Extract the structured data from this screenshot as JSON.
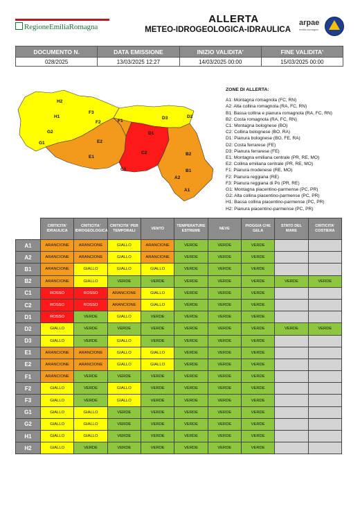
{
  "header": {
    "logo_text": "RegioneEmiliaRomagna",
    "title_main": "ALLERTA",
    "title_sub": "METEO-IDROGEOLOGICA-IDRAULICA",
    "arpae_label": "arpae",
    "arpae_sub": "emilia-romagna"
  },
  "info": {
    "headers": [
      "DOCUMENTO N.",
      "DATA EMISSIONE",
      "INIZIO VALIDITA'",
      "FINE VALIDITA'"
    ],
    "values": [
      "028/2025",
      "13/03/2025 12:27",
      "14/03/2025 00:00",
      "15/03/2025 00:00"
    ]
  },
  "map": {
    "labels": [
      "H2",
      "H1",
      "G2",
      "G1",
      "F3",
      "F2",
      "F1",
      "E2",
      "E1",
      "D3",
      "D2",
      "D1",
      "C2",
      "C1",
      "B2",
      "B1",
      "A2",
      "A1"
    ]
  },
  "legend": {
    "title": "ZONE DI ALLERTA:",
    "items": [
      "A1: Montagna romagnola (FC, RN)",
      "A2: Alta collina romagnola (RA, FC, RN)",
      "B1: Bassa collina e pianura romagnola (RA, FC, RN)",
      "B2: Costa romagnola (RA, FC, RN)",
      "C1: Montagna bolognese (BO)",
      "C2: Collina bolognese (BO, RA)",
      "D1: Pianura bolognese (BO, FE, RA)",
      "D2: Costa ferrarese (FE)",
      "D3: Pianura ferrarese (FE)",
      "E1: Montagna emiliana centrale (PR, RE, MO)",
      "E2: Collina emiliana centrale (PR, RE, MO)",
      "F1: Pianura modenese (RE, MO)",
      "F2: Pianura reggiana (RE)",
      "F3: Pianura reggiana di Po (PR, RE)",
      "G1: Montagna piacentino-parmense (PC, PR)",
      "G2: Alta collina piacentino-parmense (PC, PR)",
      "H1: Bassa collina piacentino-parmense (PC, PR)",
      "H2: Pianura piacentino-parmense (PC, PR)"
    ]
  },
  "table": {
    "columns": [
      "CRITICITA' IDRAULICA",
      "CRITICITA' IDROGEOLOGICA",
      "CRITICITA' PER TEMPORALI",
      "VENTO",
      "TEMPERATURE ESTREME",
      "NEVE",
      "PIOGGIA CHE GELA",
      "STATO DEL MARE",
      "CRITICITA' COSTIERA"
    ],
    "rows": [
      {
        "zone": "A1",
        "cells": [
          "ARANCIONE",
          "ARANCIONE",
          "GIALLO",
          "ARANCIONE",
          "VERDE",
          "VERDE",
          "VERDE",
          "",
          ""
        ]
      },
      {
        "zone": "A2",
        "cells": [
          "ARANCIONE",
          "ARANCIONE",
          "GIALLO",
          "ARANCIONE",
          "VERDE",
          "VERDE",
          "VERDE",
          "",
          ""
        ]
      },
      {
        "zone": "B1",
        "cells": [
          "ARANCIONE",
          "GIALLO",
          "GIALLO",
          "GIALLO",
          "VERDE",
          "VERDE",
          "VERDE",
          "",
          ""
        ]
      },
      {
        "zone": "B2",
        "cells": [
          "ARANCIONE",
          "GIALLO",
          "VERDE",
          "VERDE",
          "VERDE",
          "VERDE",
          "VERDE",
          "VERDE",
          "VERDE"
        ]
      },
      {
        "zone": "C1",
        "cells": [
          "ROSSO",
          "ROSSO",
          "ARANCIONE",
          "GIALLO",
          "VERDE",
          "VERDE",
          "VERDE",
          "",
          ""
        ]
      },
      {
        "zone": "C2",
        "cells": [
          "ROSSO",
          "ROSSO",
          "ARANCIONE",
          "GIALLO",
          "VERDE",
          "VERDE",
          "VERDE",
          "",
          ""
        ]
      },
      {
        "zone": "D1",
        "cells": [
          "ROSSO",
          "VERDE",
          "GIALLO",
          "VERDE",
          "VERDE",
          "VERDE",
          "VERDE",
          "",
          ""
        ]
      },
      {
        "zone": "D2",
        "cells": [
          "GIALLO",
          "VERDE",
          "VERDE",
          "VERDE",
          "VERDE",
          "VERDE",
          "VERDE",
          "VERDE",
          "VERDE"
        ]
      },
      {
        "zone": "D3",
        "cells": [
          "GIALLO",
          "VERDE",
          "GIALLO",
          "VERDE",
          "VERDE",
          "VERDE",
          "VERDE",
          "",
          ""
        ]
      },
      {
        "zone": "E1",
        "cells": [
          "ARANCIONE",
          "ARANCIONE",
          "GIALLO",
          "GIALLO",
          "VERDE",
          "VERDE",
          "VERDE",
          "",
          ""
        ]
      },
      {
        "zone": "E2",
        "cells": [
          "ARANCIONE",
          "ARANCIONE",
          "GIALLO",
          "GIALLO",
          "VERDE",
          "VERDE",
          "VERDE",
          "",
          ""
        ]
      },
      {
        "zone": "F1",
        "cells": [
          "ARANCIONE",
          "VERDE",
          "VERDE",
          "VERDE",
          "VERDE",
          "VERDE",
          "VERDE",
          "",
          ""
        ]
      },
      {
        "zone": "F2",
        "cells": [
          "GIALLO",
          "VERDE",
          "GIALLO",
          "VERDE",
          "VERDE",
          "VERDE",
          "VERDE",
          "",
          ""
        ]
      },
      {
        "zone": "F3",
        "cells": [
          "GIALLO",
          "VERDE",
          "GIALLO",
          "VERDE",
          "VERDE",
          "VERDE",
          "VERDE",
          "",
          ""
        ]
      },
      {
        "zone": "G1",
        "cells": [
          "GIALLO",
          "GIALLO",
          "VERDE",
          "VERDE",
          "VERDE",
          "VERDE",
          "VERDE",
          "",
          ""
        ]
      },
      {
        "zone": "G2",
        "cells": [
          "GIALLO",
          "GIALLO",
          "VERDE",
          "VERDE",
          "VERDE",
          "VERDE",
          "VERDE",
          "",
          ""
        ]
      },
      {
        "zone": "H1",
        "cells": [
          "GIALLO",
          "GIALLO",
          "VERDE",
          "VERDE",
          "VERDE",
          "VERDE",
          "VERDE",
          "",
          ""
        ]
      },
      {
        "zone": "H2",
        "cells": [
          "GIALLO",
          "VERDE",
          "VERDE",
          "VERDE",
          "VERDE",
          "VERDE",
          "VERDE",
          "",
          ""
        ]
      }
    ]
  },
  "colors": {
    "VERDE": "#8dc63f",
    "GIALLO": "#ffff00",
    "ARANCIONE": "#f39a1c",
    "ROSSO": "#ff1a1a",
    "header_gray": "#8c8c8c",
    "empty_gray": "#d4d4d4"
  }
}
